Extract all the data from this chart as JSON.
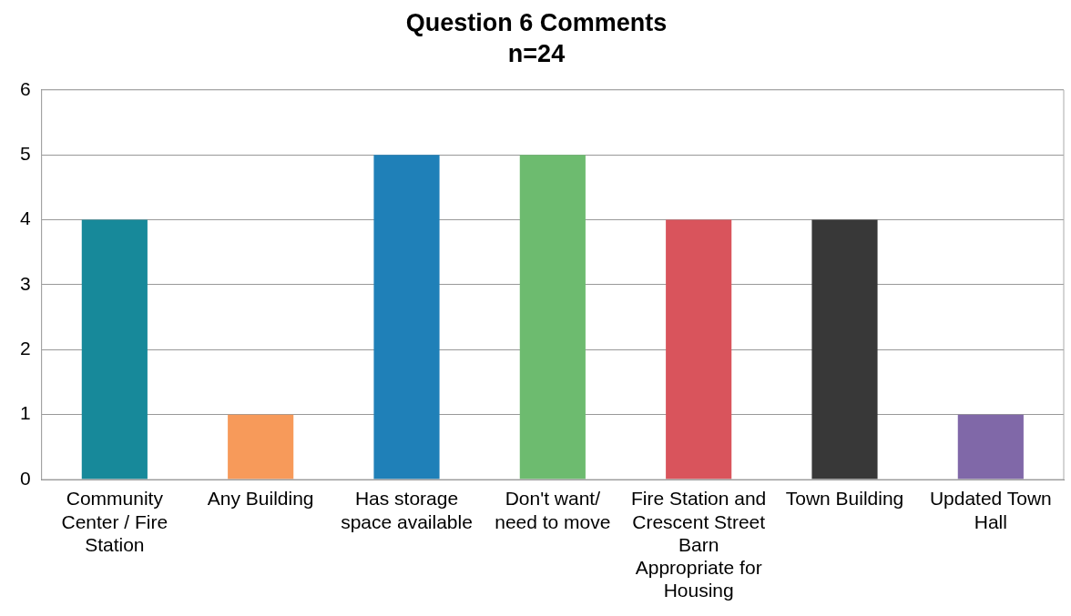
{
  "chart_data": {
    "type": "bar",
    "title": "Question 6 Comments",
    "subtitle": "n=24",
    "categories": [
      "Community Center / Fire Station",
      "Any Building",
      "Has storage space available",
      "Don't want/ need to move",
      "Fire Station and Crescent Street Barn Appropriate for Housing",
      "Town Building",
      "Updated Town Hall"
    ],
    "values": [
      4,
      1,
      5,
      5,
      4,
      4,
      1
    ],
    "colors": [
      "#17899a",
      "#f79a5a",
      "#1f80b8",
      "#6dbb6f",
      "#d9545c",
      "#383838",
      "#8068a8"
    ],
    "ylim": [
      0,
      6
    ],
    "yticks": [
      0,
      1,
      2,
      3,
      4,
      5,
      6
    ],
    "grid": "y",
    "legend": false
  }
}
